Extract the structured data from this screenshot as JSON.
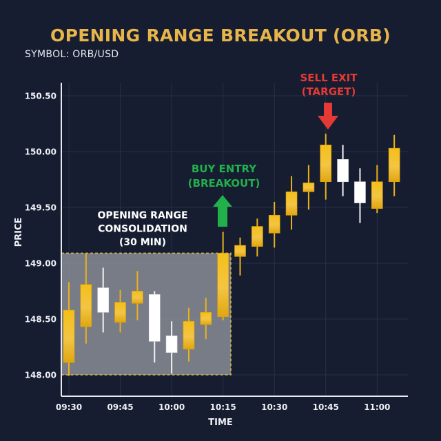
{
  "header": {
    "title": "OPENING RANGE BREAKOUT (ORB)",
    "symbol": "SYMBOL: ORB/USD"
  },
  "colors": {
    "background": "#161d30",
    "grid": "#263048",
    "axis": "#e8eaf0",
    "title": "#e8b54b",
    "bullish": "#f5bf18",
    "bullish_dark": "#e0a60f",
    "bearish": "#ffffff",
    "range_fill": "#8a8d97",
    "range_border": "#d8b455",
    "buy": "#22b04b",
    "sell": "#e53935"
  },
  "chart_data": {
    "type": "candlestick",
    "title": "OPENING RANGE BREAKOUT (ORB)",
    "subtitle": "SYMBOL: ORB/USD",
    "xlabel": "TIME",
    "ylabel": "PRICE",
    "ylim": [
      147.8,
      150.7
    ],
    "yticks": [
      148.0,
      148.5,
      149.0,
      149.5,
      150.0,
      150.5
    ],
    "ytick_labels": [
      "148.00",
      "148.50",
      "149.00",
      "149.50",
      "150.00",
      "150.50"
    ],
    "xtick_labels": [
      "09:30",
      "09:45",
      "10:00",
      "10:15",
      "10:30",
      "10:45",
      "11:00"
    ],
    "xtick_index": [
      0,
      3,
      6,
      9,
      12,
      15,
      18
    ],
    "grid": true,
    "interval_minutes": 5,
    "candles": [
      {
        "time": "09:30",
        "open": 148.11,
        "high": 148.83,
        "low": 147.99,
        "close": 148.58
      },
      {
        "time": "09:35",
        "open": 148.43,
        "high": 149.09,
        "low": 148.28,
        "close": 148.81
      },
      {
        "time": "09:40",
        "open": 148.78,
        "high": 148.96,
        "low": 148.38,
        "close": 148.56
      },
      {
        "time": "09:45",
        "open": 148.47,
        "high": 148.76,
        "low": 148.38,
        "close": 148.65
      },
      {
        "time": "09:50",
        "open": 148.64,
        "high": 148.93,
        "low": 148.49,
        "close": 148.75
      },
      {
        "time": "09:55",
        "open": 148.72,
        "high": 148.75,
        "low": 148.11,
        "close": 148.3
      },
      {
        "time": "10:00",
        "open": 148.35,
        "high": 148.48,
        "low": 148.01,
        "close": 148.2
      },
      {
        "time": "10:05",
        "open": 148.23,
        "high": 148.6,
        "low": 148.12,
        "close": 148.48
      },
      {
        "time": "10:10",
        "open": 148.45,
        "high": 148.69,
        "low": 148.32,
        "close": 148.56
      },
      {
        "time": "10:15",
        "open": 148.52,
        "high": 149.28,
        "low": 148.49,
        "close": 149.09
      },
      {
        "time": "10:20",
        "open": 149.06,
        "high": 149.23,
        "low": 148.89,
        "close": 149.16
      },
      {
        "time": "10:25",
        "open": 149.15,
        "high": 149.4,
        "low": 149.06,
        "close": 149.33
      },
      {
        "time": "10:30",
        "open": 149.27,
        "high": 149.55,
        "low": 149.14,
        "close": 149.43
      },
      {
        "time": "10:35",
        "open": 149.43,
        "high": 149.78,
        "low": 149.3,
        "close": 149.64
      },
      {
        "time": "10:40",
        "open": 149.64,
        "high": 149.88,
        "low": 149.48,
        "close": 149.72
      },
      {
        "time": "10:45",
        "open": 149.73,
        "high": 150.16,
        "low": 149.57,
        "close": 150.06
      },
      {
        "time": "10:50",
        "open": 149.93,
        "high": 150.06,
        "low": 149.6,
        "close": 149.73
      },
      {
        "time": "10:55",
        "open": 149.73,
        "high": 149.85,
        "low": 149.36,
        "close": 149.54
      },
      {
        "time": "11:00",
        "open": 149.49,
        "high": 149.88,
        "low": 149.45,
        "close": 149.73
      },
      {
        "time": "11:05",
        "open": 149.73,
        "high": 150.15,
        "low": 149.6,
        "close": 150.03
      }
    ],
    "opening_range": {
      "start_index": 0,
      "end_index": 9,
      "high": 149.09,
      "low": 148.0,
      "label": [
        "OPENING RANGE",
        "CONSOLIDATION",
        "(30 MIN)"
      ]
    },
    "annotations": [
      {
        "type": "buy",
        "label": [
          "BUY ENTRY",
          "(BREAKOUT)"
        ],
        "candle_index": 9,
        "direction": "up"
      },
      {
        "type": "sell",
        "label": [
          "SELL EXIT",
          "(TARGET)"
        ],
        "candle_index": 15,
        "direction": "down"
      }
    ]
  }
}
